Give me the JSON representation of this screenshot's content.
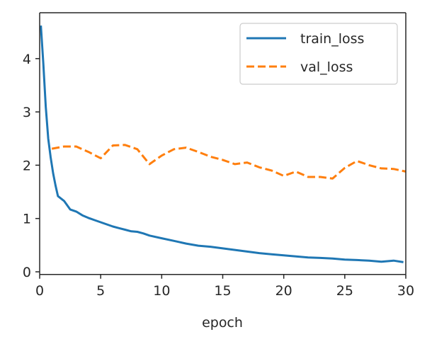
{
  "chart_data": {
    "type": "line",
    "title": "",
    "xlabel": "epoch",
    "ylabel": "",
    "xlim": [
      0,
      30
    ],
    "ylim": [
      -0.05,
      4.8
    ],
    "xticks": [
      0,
      5,
      10,
      15,
      20,
      25,
      30
    ],
    "xtick_labels": [
      "0",
      "5",
      "10",
      "15",
      "20",
      "25",
      "30"
    ],
    "yticks": [
      0,
      1,
      2,
      3,
      4
    ],
    "ytick_labels": [
      "0",
      "1",
      "2",
      "3",
      "4"
    ],
    "grid": false,
    "legend": {
      "position": "top-right",
      "entries": [
        "train_loss",
        "val_loss"
      ]
    },
    "series": [
      {
        "name": "train_loss",
        "color": "#1f77b4",
        "style": "solid",
        "x": [
          0.1,
          0.3,
          0.5,
          0.7,
          0.9,
          1.1,
          1.3,
          1.5,
          2.0,
          2.5,
          3.0,
          3.5,
          4.0,
          4.5,
          5.0,
          5.5,
          6.0,
          6.5,
          7.0,
          7.5,
          8.0,
          8.5,
          9.0,
          10.0,
          11.0,
          12.0,
          13.0,
          14.0,
          15.0,
          16.0,
          17.0,
          18.0,
          19.0,
          20.0,
          21.0,
          22.0,
          23.0,
          24.0,
          25.0,
          26.0,
          27.0,
          28.0,
          29.0,
          29.8
        ],
        "y": [
          4.62,
          3.9,
          3.1,
          2.5,
          2.15,
          1.85,
          1.62,
          1.42,
          1.33,
          1.17,
          1.13,
          1.06,
          1.01,
          0.97,
          0.93,
          0.89,
          0.85,
          0.82,
          0.79,
          0.76,
          0.75,
          0.72,
          0.68,
          0.63,
          0.58,
          0.53,
          0.49,
          0.47,
          0.44,
          0.41,
          0.38,
          0.35,
          0.33,
          0.31,
          0.29,
          0.27,
          0.26,
          0.25,
          0.23,
          0.22,
          0.21,
          0.19,
          0.21,
          0.18
        ]
      },
      {
        "name": "val_loss",
        "color": "#ff7f0e",
        "style": "dashed",
        "x": [
          1,
          2,
          3,
          4,
          5,
          6,
          7,
          8,
          9,
          10,
          11,
          12,
          13,
          14,
          15,
          16,
          17,
          18,
          19,
          20,
          21,
          22,
          23,
          24,
          25,
          26,
          27,
          28,
          29,
          30
        ],
        "y": [
          2.31,
          2.35,
          2.35,
          2.25,
          2.13,
          2.37,
          2.38,
          2.3,
          2.02,
          2.18,
          2.3,
          2.33,
          2.25,
          2.16,
          2.1,
          2.02,
          2.05,
          1.96,
          1.9,
          1.8,
          1.88,
          1.78,
          1.78,
          1.75,
          1.95,
          2.08,
          2.0,
          1.94,
          1.93,
          1.88
        ]
      }
    ]
  }
}
